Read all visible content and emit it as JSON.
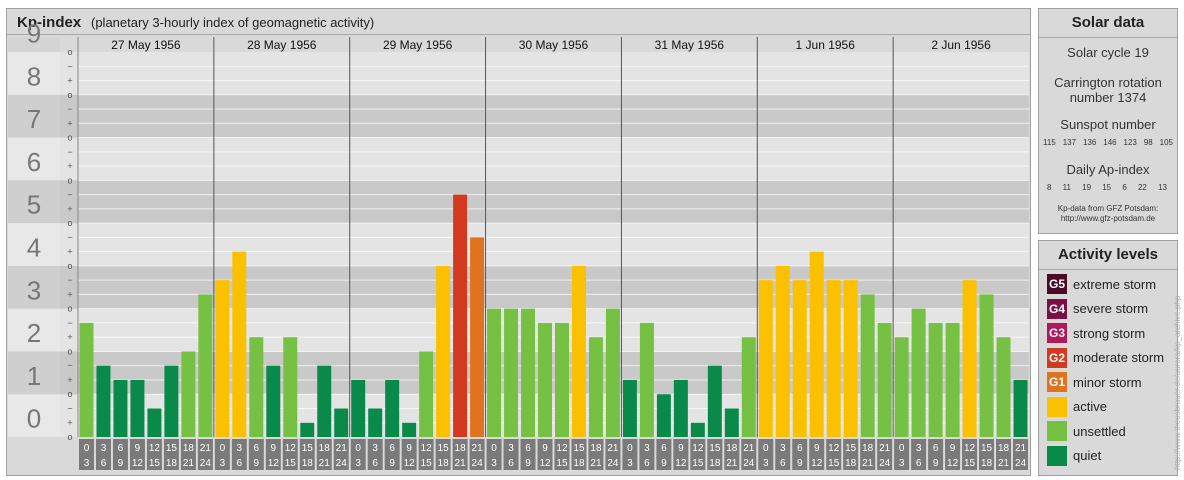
{
  "header": {
    "title": "Kp-index",
    "subtitle": "(planetary 3-hourly index of geomagnetic activity)"
  },
  "chart_data": {
    "type": "bar",
    "title": "Kp-index",
    "subtitle": "(planetary 3-hourly index of geomagnetic activity)",
    "ylim": [
      0,
      9
    ],
    "y_ticks": [
      "0",
      "1",
      "2",
      "3",
      "4",
      "5",
      "6",
      "7",
      "8",
      "9"
    ],
    "minor_labels": [
      "o",
      "+",
      "−"
    ],
    "days": [
      "27 May 1956",
      "28 May 1956",
      "29 May 1956",
      "30 May 1956",
      "31 May 1956",
      "1 Jun 1956",
      "2 Jun 1956"
    ],
    "hour_labels_top": [
      "0",
      "3",
      "6",
      "9",
      "12",
      "15",
      "18",
      "21"
    ],
    "hour_labels_bottom": [
      "3",
      "6",
      "9",
      "12",
      "15",
      "18",
      "21",
      "24"
    ],
    "series": [
      {
        "values": [
          2.667,
          1.667,
          1.333,
          1.333,
          0.667,
          1.667,
          2.0,
          3.333,
          3.667,
          4.333,
          2.333,
          1.667,
          2.333,
          0.333,
          1.667,
          0.667,
          1.333,
          0.667,
          1.333,
          0.333,
          2.0,
          4.0,
          5.667,
          4.667,
          3.0,
          3.0,
          3.0,
          2.667,
          2.667,
          4.0,
          2.333,
          3.0,
          1.333,
          2.667,
          1.0,
          1.333,
          0.333,
          1.667,
          0.667,
          2.333,
          3.667,
          4.0,
          3.667,
          4.333,
          3.667,
          3.667,
          3.333,
          2.667,
          2.333,
          3.0,
          2.667,
          2.667,
          3.667,
          3.333,
          2.333,
          1.333
        ]
      }
    ],
    "colors": {
      "quiet": "#0a8a4a",
      "unsettled": "#76c043",
      "active": "#fbc000",
      "G1": "#e0731e",
      "G2": "#d23a20",
      "G3": "#b0185a",
      "G4": "#7a1043",
      "G5": "#4a0a28"
    },
    "grid": true
  },
  "solar": {
    "title": "Solar data",
    "cycle": "Solar cycle 19",
    "carrington_1": "Carrington rotation",
    "carrington_2": "number 1374",
    "sunspot_title": "Sunspot number",
    "sunspot_values": [
      "115",
      "137",
      "136",
      "146",
      "123",
      "98",
      "105"
    ],
    "ap_title": "Daily Ap-index",
    "ap_values": [
      "8",
      "11",
      "19",
      "15",
      "6",
      "22",
      "13"
    ],
    "source_1": "Kp-data from GFZ Potsdam:",
    "source_2": "http://www.gfz-potsdam.de"
  },
  "activity": {
    "title": "Activity levels",
    "levels": [
      {
        "badge": "G5",
        "label": "extreme storm",
        "color": "#4a0a28"
      },
      {
        "badge": "G4",
        "label": "severe storm",
        "color": "#7a1043"
      },
      {
        "badge": "G3",
        "label": "strong storm",
        "color": "#b0185a"
      },
      {
        "badge": "G2",
        "label": "moderate storm",
        "color": "#d23a20"
      },
      {
        "badge": "G1",
        "label": "minor storm",
        "color": "#e0731e"
      },
      {
        "badge": "",
        "label": "active",
        "color": "#fbc000"
      },
      {
        "badge": "",
        "label": "unsettled",
        "color": "#76c043"
      },
      {
        "badge": "",
        "label": "quiet",
        "color": "#0a8a4a"
      }
    ]
  },
  "watermark": "http://www.theusbrauer.de/aurora/kp_archive.php"
}
